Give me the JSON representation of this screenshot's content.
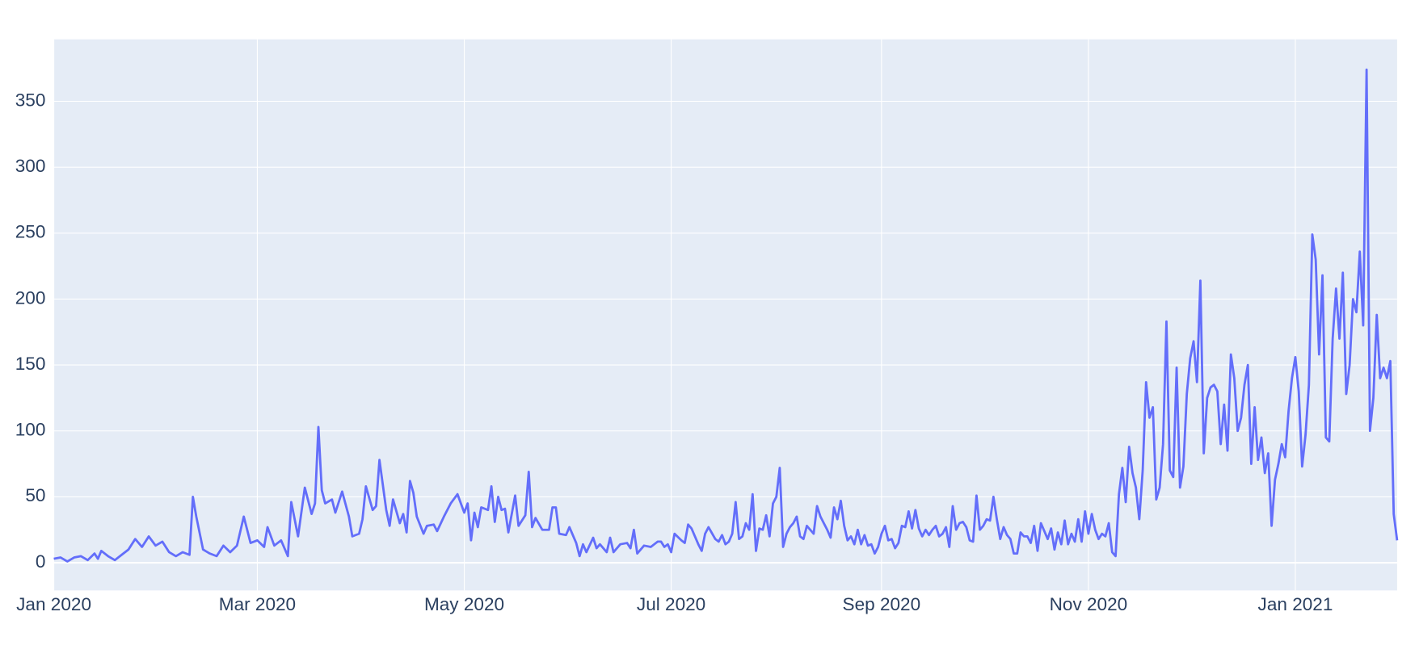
{
  "chart_data": {
    "type": "line",
    "color": "#636efa",
    "grid": true,
    "x": [
      0,
      2,
      4,
      6,
      8,
      10,
      12,
      13,
      14,
      16,
      18,
      20,
      22,
      24,
      26,
      28,
      30,
      32,
      34,
      36,
      38,
      40,
      41,
      42,
      44,
      46,
      48,
      50,
      52,
      54,
      56,
      58,
      60,
      62,
      63,
      65,
      67,
      69,
      70,
      72,
      74,
      76,
      77,
      78,
      79,
      80,
      82,
      83,
      85,
      87,
      88,
      90,
      91,
      92,
      94,
      95,
      96,
      98,
      99,
      100,
      102,
      103,
      104,
      105,
      106,
      107,
      109,
      110,
      112,
      113,
      115,
      117,
      119,
      121,
      122,
      123,
      124,
      125,
      126,
      128,
      129,
      130,
      131,
      132,
      133,
      134,
      136,
      137,
      139,
      140,
      141,
      142,
      144,
      146,
      147,
      148,
      149,
      151,
      152,
      154,
      155,
      156,
      157,
      159,
      160,
      161,
      163,
      164,
      165,
      167,
      169,
      170,
      171,
      172,
      174,
      176,
      178,
      179,
      180,
      181,
      182,
      183,
      185,
      186,
      187,
      188,
      190,
      191,
      192,
      193,
      195,
      196,
      197,
      198,
      199,
      200,
      201,
      202,
      203,
      204,
      205,
      206,
      207,
      208,
      209,
      210,
      211,
      212,
      213,
      214,
      215,
      216,
      217,
      218,
      219,
      220,
      221,
      222,
      223,
      224,
      225,
      226,
      227,
      228,
      229,
      230,
      231,
      232,
      233,
      234,
      235,
      236,
      237,
      238,
      239,
      240,
      241,
      242,
      243,
      244,
      245,
      246,
      247,
      248,
      249,
      250,
      251,
      252,
      253,
      254,
      255,
      256,
      257,
      258,
      259,
      260,
      261,
      262,
      263,
      264,
      265,
      266,
      267,
      268,
      269,
      270,
      271,
      272,
      273,
      274,
      275,
      276,
      277,
      278,
      279,
      280,
      281,
      282,
      283,
      284,
      285,
      286,
      287,
      288,
      289,
      290,
      291,
      292,
      293,
      294,
      295,
      296,
      297,
      298,
      299,
      300,
      301,
      302,
      303,
      304,
      305,
      306,
      307,
      308,
      309,
      310,
      311,
      312,
      313,
      314,
      315,
      316,
      317,
      318,
      319,
      320,
      321,
      322,
      323,
      324,
      325,
      326,
      327,
      328,
      329,
      330,
      331,
      332,
      333,
      334,
      335,
      336,
      337,
      338,
      339,
      340,
      341,
      342,
      343,
      344,
      345,
      346,
      347,
      348,
      349,
      350,
      351,
      352,
      353,
      354,
      355,
      356,
      357,
      358,
      359,
      360,
      361,
      362,
      363,
      364,
      365,
      366,
      367,
      368,
      369,
      370,
      371,
      372,
      373,
      374,
      375,
      376,
      377,
      378,
      379,
      380,
      381,
      382,
      383,
      384,
      385,
      386,
      387,
      388,
      389,
      390,
      391,
      392,
      393,
      394,
      395,
      396
    ],
    "values": [
      3,
      4,
      1,
      4,
      5,
      2,
      7,
      3,
      9,
      5,
      2,
      6,
      10,
      18,
      12,
      20,
      13,
      16,
      8,
      5,
      8,
      6,
      50,
      35,
      10,
      7,
      5,
      13,
      8,
      13,
      35,
      15,
      17,
      12,
      27,
      13,
      17,
      5,
      46,
      20,
      57,
      37,
      45,
      103,
      55,
      45,
      48,
      38,
      54,
      35,
      20,
      22,
      33,
      58,
      40,
      43,
      78,
      40,
      28,
      48,
      30,
      37,
      23,
      62,
      53,
      35,
      22,
      28,
      29,
      24,
      35,
      45,
      52,
      38,
      45,
      17,
      38,
      27,
      42,
      40,
      58,
      31,
      50,
      40,
      41,
      23,
      51,
      28,
      36,
      69,
      27,
      34,
      25,
      25,
      42,
      42,
      22,
      21,
      27,
      15,
      5,
      14,
      8,
      19,
      11,
      14,
      8,
      19,
      8,
      14,
      15,
      11,
      25,
      7,
      13,
      12,
      16,
      16,
      12,
      14,
      8,
      22,
      17,
      15,
      29,
      26,
      14,
      9,
      22,
      27,
      18,
      16,
      21,
      14,
      16,
      22,
      46,
      18,
      20,
      30,
      25,
      52,
      9,
      26,
      25,
      36,
      20,
      45,
      50,
      72,
      12,
      22,
      27,
      30,
      35,
      20,
      18,
      28,
      25,
      22,
      43,
      35,
      30,
      25,
      19,
      42,
      33,
      47,
      28,
      17,
      20,
      14,
      25,
      14,
      21,
      13,
      14,
      7,
      12,
      22,
      28,
      17,
      18,
      11,
      15,
      28,
      27,
      39,
      26,
      40,
      26,
      20,
      25,
      21,
      25,
      28,
      20,
      22,
      27,
      12,
      43,
      25,
      30,
      31,
      27,
      17,
      16,
      51,
      25,
      28,
      33,
      32,
      50,
      33,
      18,
      27,
      21,
      18,
      7,
      7,
      23,
      20,
      20,
      15,
      28,
      9,
      30,
      24,
      18,
      26,
      10,
      23,
      14,
      32,
      14,
      22,
      16,
      33,
      16,
      39,
      22,
      37,
      25,
      18,
      22,
      20,
      30,
      8,
      5,
      52,
      72,
      46,
      88,
      68,
      57,
      33,
      70,
      137,
      110,
      118,
      48,
      57,
      90,
      183,
      70,
      65,
      148,
      57,
      73,
      128,
      155,
      168,
      137,
      214,
      83,
      125,
      133,
      135,
      130,
      90,
      120,
      85,
      158,
      140,
      100,
      110,
      135,
      150,
      75,
      118,
      78,
      95,
      68,
      83,
      28,
      63,
      75,
      90,
      80,
      115,
      140,
      156,
      130,
      73,
      97,
      135,
      249,
      230,
      158,
      218,
      95,
      92,
      170,
      208,
      170,
      220,
      128,
      150,
      200,
      190,
      236,
      180,
      374,
      100,
      125,
      188,
      140,
      148,
      140,
      153,
      37,
      17
    ],
    "xlim": [
      0,
      396
    ],
    "xticks": [
      {
        "value": 0,
        "label": "Jan 2020"
      },
      {
        "value": 60,
        "label": "Mar 2020"
      },
      {
        "value": 121,
        "label": "May 2020"
      },
      {
        "value": 182,
        "label": "Jul 2020"
      },
      {
        "value": 244,
        "label": "Sep 2020"
      },
      {
        "value": 305,
        "label": "Nov 2020"
      },
      {
        "value": 366,
        "label": "Jan 2021"
      }
    ],
    "ylim": [
      -21,
      397
    ],
    "yticks": [
      0,
      50,
      100,
      150,
      200,
      250,
      300,
      350
    ]
  }
}
